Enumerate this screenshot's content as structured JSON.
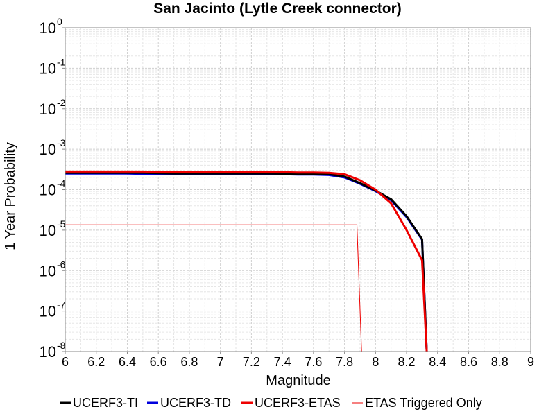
{
  "chart_data": {
    "type": "line",
    "title": "San Jacinto (Lytle Creek connector)",
    "xlabel": "Magnitude",
    "ylabel": "1 Year Probability",
    "xlim": [
      6,
      9
    ],
    "ylim": [
      1e-08,
      1
    ],
    "yscale": "log",
    "grid": true,
    "legend_position": "bottom",
    "x_ticks": [
      "6",
      "6.2",
      "6.4",
      "6.6",
      "6.8",
      "7",
      "7.2",
      "7.4",
      "7.6",
      "7.8",
      "8",
      "8.2",
      "8.4",
      "8.6",
      "8.8",
      "9"
    ],
    "y_ticks": [
      {
        "value": 1e-08,
        "base": "10",
        "exp": "-8"
      },
      {
        "value": 1e-07,
        "base": "10",
        "exp": "-7"
      },
      {
        "value": 1e-06,
        "base": "10",
        "exp": "-6"
      },
      {
        "value": 1e-05,
        "base": "10",
        "exp": "-5"
      },
      {
        "value": 0.0001,
        "base": "10",
        "exp": "-4"
      },
      {
        "value": 0.001,
        "base": "10",
        "exp": "-3"
      },
      {
        "value": 0.01,
        "base": "10",
        "exp": "-2"
      },
      {
        "value": 0.1,
        "base": "10",
        "exp": "-1"
      },
      {
        "value": 1,
        "base": "10",
        "exp": "0"
      }
    ],
    "series": [
      {
        "name": "UCERF3-TI",
        "color": "#000000",
        "width": 3,
        "x": [
          6.0,
          6.1,
          6.2,
          6.3,
          6.4,
          6.5,
          6.6,
          6.7,
          6.8,
          6.9,
          7.0,
          7.1,
          7.2,
          7.3,
          7.4,
          7.5,
          7.6,
          7.7,
          7.8,
          7.9,
          8.0,
          8.1,
          8.2,
          8.3,
          8.33
        ],
        "y": [
          0.00026,
          0.00026,
          0.00026,
          0.00026,
          0.00026,
          0.00026,
          0.000255,
          0.00025,
          0.00025,
          0.00025,
          0.00025,
          0.00025,
          0.00025,
          0.00025,
          0.000248,
          0.000245,
          0.000245,
          0.00024,
          0.00021,
          0.000145,
          9.5e-05,
          5.8e-05,
          2.2e-05,
          6e-06,
          1e-08
        ]
      },
      {
        "name": "UCERF3-TD",
        "color": "#0000dd",
        "width": 3,
        "x": [
          6.0,
          6.1,
          6.2,
          6.3,
          6.4,
          6.5,
          6.6,
          6.7,
          6.8,
          6.9,
          7.0,
          7.1,
          7.2,
          7.3,
          7.4,
          7.5,
          7.6,
          7.7,
          7.8,
          7.9,
          8.0,
          8.1,
          8.2,
          8.3,
          8.33
        ],
        "y": [
          0.00025,
          0.00025,
          0.00025,
          0.00025,
          0.00025,
          0.000245,
          0.000245,
          0.00024,
          0.00024,
          0.00024,
          0.00024,
          0.00024,
          0.00024,
          0.00024,
          0.00024,
          0.000235,
          0.000235,
          0.00023,
          0.0002,
          0.00014,
          9.2e-05,
          5.5e-05,
          2.1e-05,
          5.8e-06,
          1e-08
        ]
      },
      {
        "name": "UCERF3-ETAS",
        "color": "#ee0000",
        "width": 3,
        "x": [
          6.0,
          6.1,
          6.2,
          6.3,
          6.4,
          6.5,
          6.6,
          6.7,
          6.8,
          6.9,
          7.0,
          7.1,
          7.2,
          7.3,
          7.4,
          7.5,
          7.6,
          7.7,
          7.8,
          7.9,
          8.0,
          8.1,
          8.2,
          8.3,
          8.33
        ],
        "y": [
          0.00028,
          0.00028,
          0.00028,
          0.00028,
          0.00028,
          0.00028,
          0.000275,
          0.000275,
          0.00027,
          0.00027,
          0.00027,
          0.00027,
          0.00027,
          0.00027,
          0.00027,
          0.000265,
          0.000265,
          0.00026,
          0.00024,
          0.00017,
          0.0001,
          4.6e-05,
          1e-05,
          1.8e-06,
          1e-08
        ]
      },
      {
        "name": "ETAS Triggered Only",
        "color": "#ee0000",
        "width": 1,
        "x": [
          6.0,
          6.5,
          7.0,
          7.5,
          7.8,
          7.88,
          7.91
        ],
        "y": [
          1.35e-05,
          1.35e-05,
          1.35e-05,
          1.35e-05,
          1.35e-05,
          1.35e-05,
          1e-08
        ]
      }
    ]
  }
}
